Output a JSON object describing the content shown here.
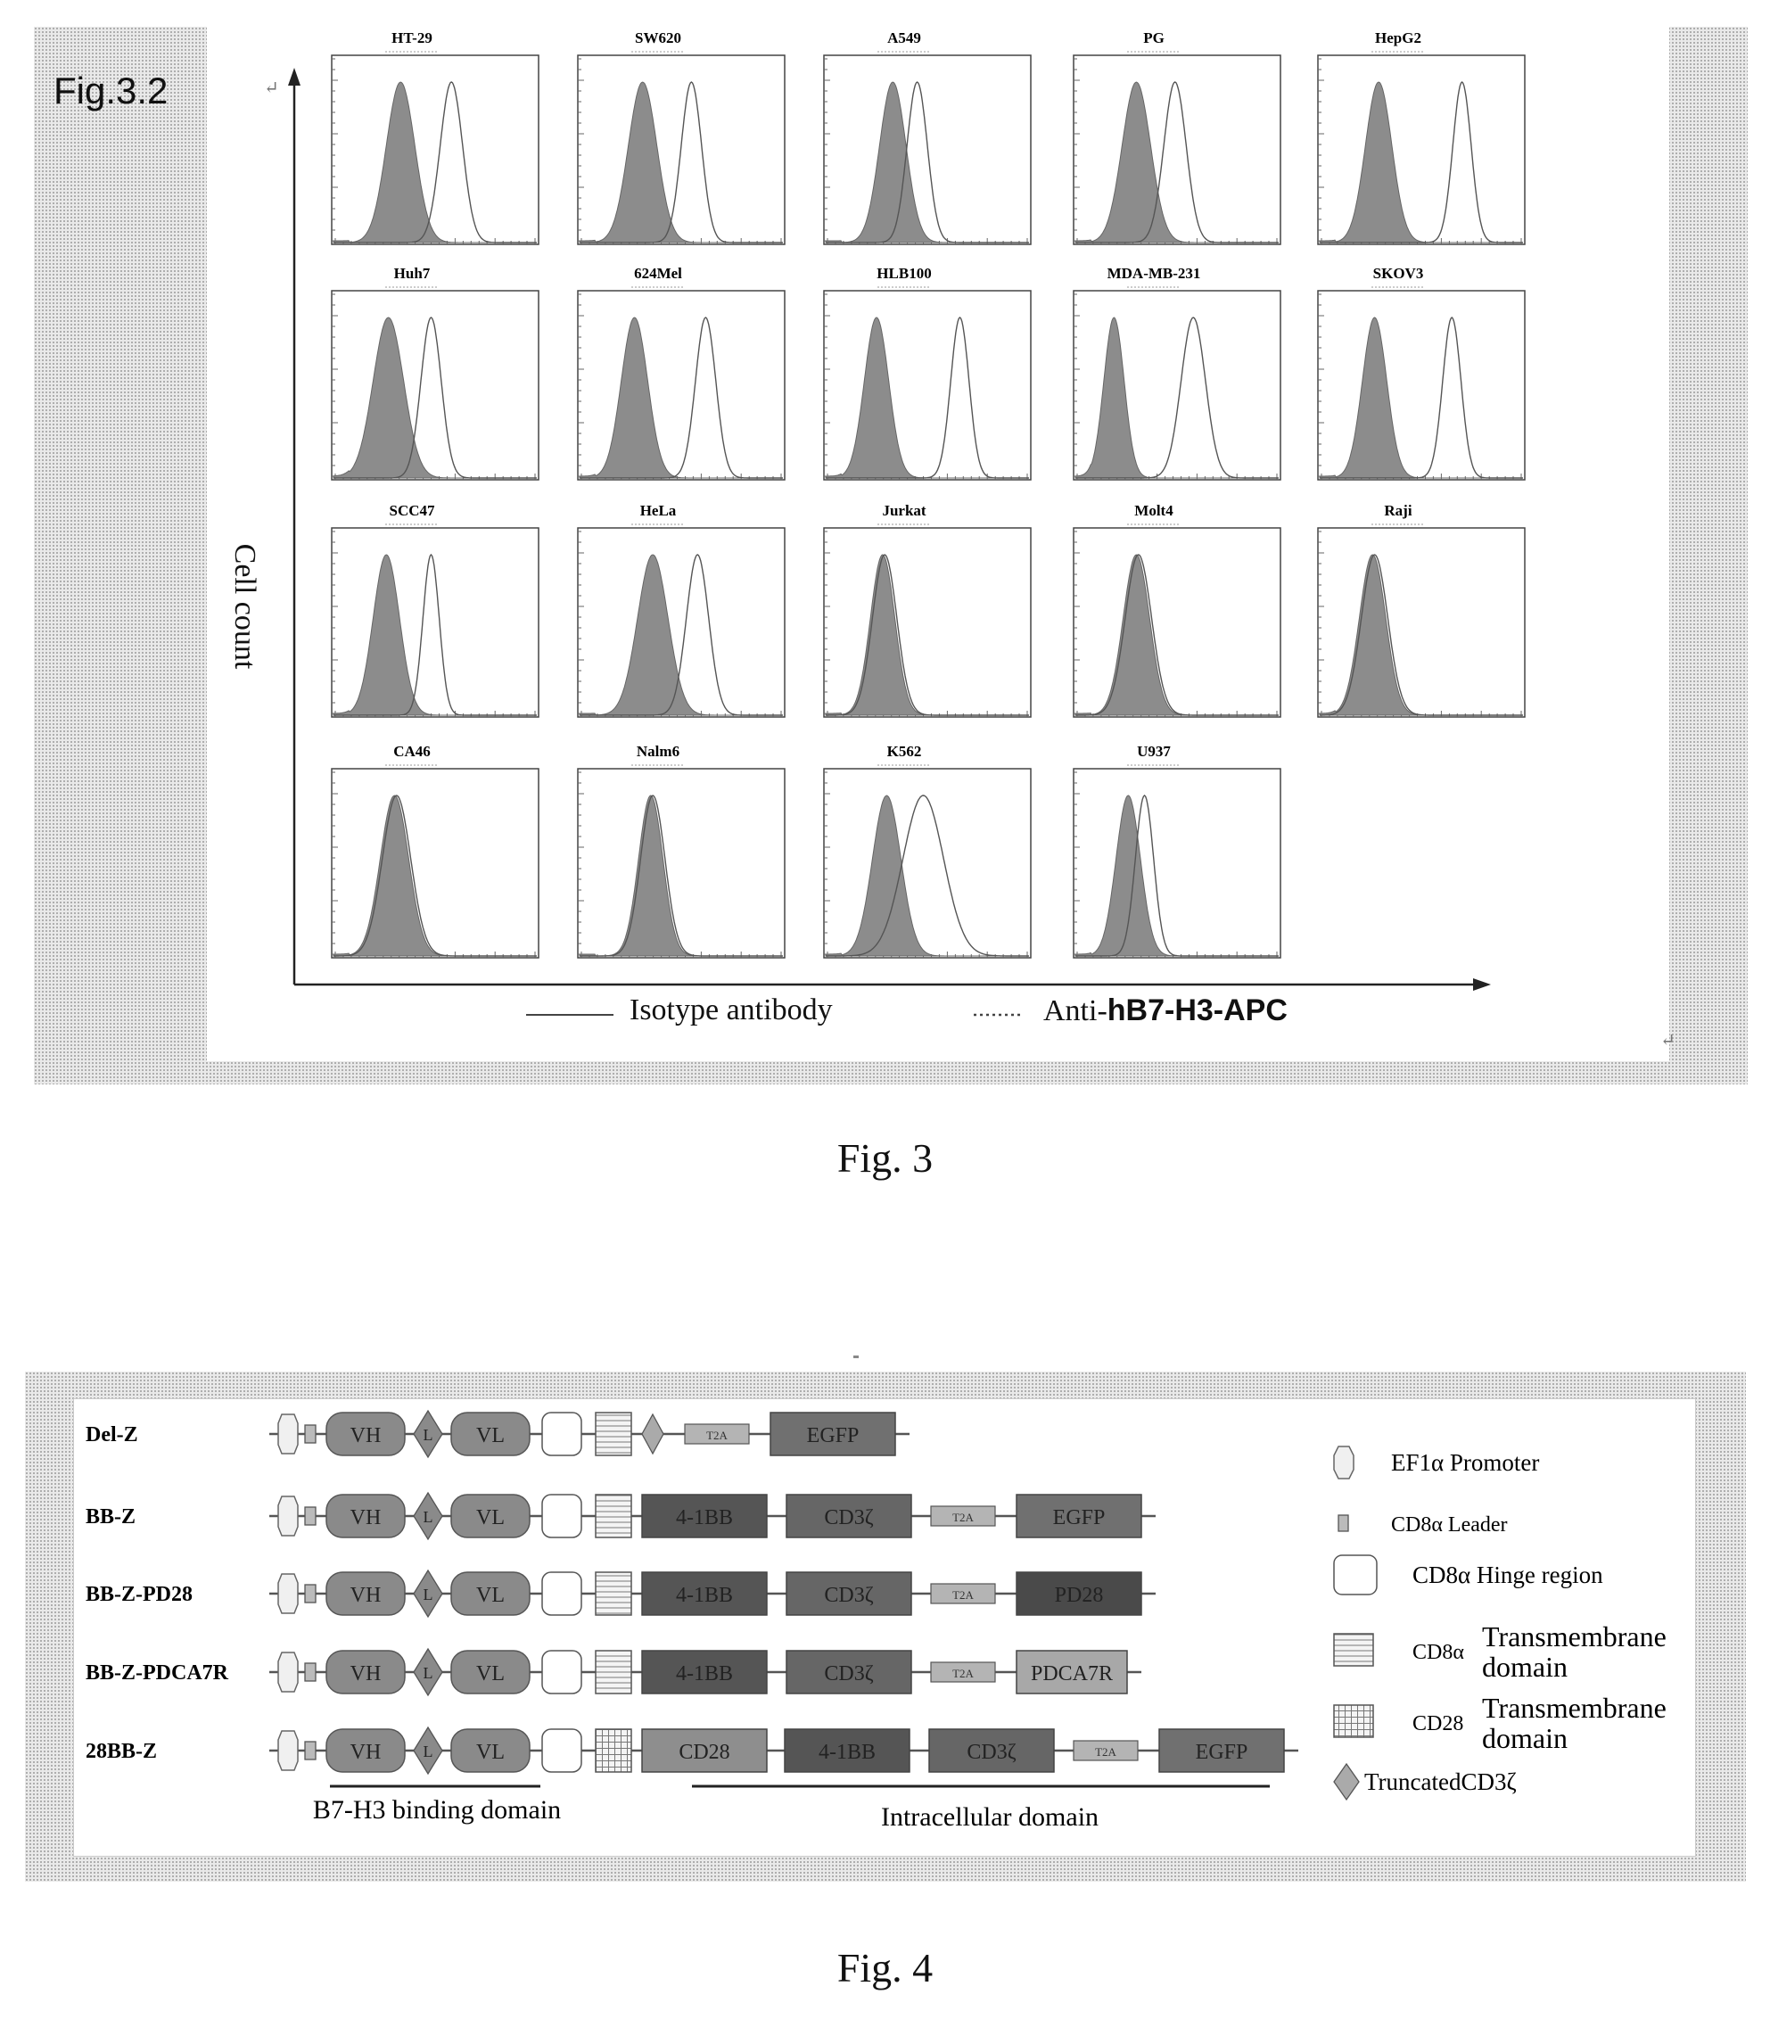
{
  "fig3": {
    "panel_label": "Fig.3.2",
    "y_axis_label": "Cell count",
    "legend": {
      "isotype": "Isotype antibody",
      "anti": "Anti-",
      "anti_bold": "hB7-H3-APC"
    },
    "caption": "Fig. 3",
    "cells": [
      {
        "name": "HT-29",
        "row": 0,
        "col": 0,
        "iso_mu": 0.33,
        "iso_sd": 0.07,
        "anti_mu": 0.58,
        "anti_sd": 0.055
      },
      {
        "name": "SW620",
        "row": 0,
        "col": 1,
        "iso_mu": 0.31,
        "iso_sd": 0.07,
        "anti_mu": 0.55,
        "anti_sd": 0.05
      },
      {
        "name": "A549",
        "row": 0,
        "col": 2,
        "iso_mu": 0.33,
        "iso_sd": 0.065,
        "anti_mu": 0.45,
        "anti_sd": 0.05
      },
      {
        "name": "PG",
        "row": 0,
        "col": 3,
        "iso_mu": 0.3,
        "iso_sd": 0.07,
        "anti_mu": 0.49,
        "anti_sd": 0.055
      },
      {
        "name": "HepG2",
        "row": 0,
        "col": 4,
        "iso_mu": 0.29,
        "iso_sd": 0.065,
        "anti_mu": 0.7,
        "anti_sd": 0.045
      },
      {
        "name": "Huh7",
        "row": 1,
        "col": 0,
        "iso_mu": 0.27,
        "iso_sd": 0.075,
        "anti_mu": 0.48,
        "anti_sd": 0.05
      },
      {
        "name": "624Mel",
        "row": 1,
        "col": 1,
        "iso_mu": 0.27,
        "iso_sd": 0.065,
        "anti_mu": 0.62,
        "anti_sd": 0.05
      },
      {
        "name": "HLB100",
        "row": 1,
        "col": 2,
        "iso_mu": 0.25,
        "iso_sd": 0.06,
        "anti_mu": 0.66,
        "anti_sd": 0.045
      },
      {
        "name": "MDA-MB-231",
        "row": 1,
        "col": 3,
        "iso_mu": 0.19,
        "iso_sd": 0.05,
        "anti_mu": 0.58,
        "anti_sd": 0.06
      },
      {
        "name": "SKOV3",
        "row": 1,
        "col": 4,
        "iso_mu": 0.27,
        "iso_sd": 0.06,
        "anti_mu": 0.65,
        "anti_sd": 0.045
      },
      {
        "name": "SCC47",
        "row": 2,
        "col": 0,
        "iso_mu": 0.26,
        "iso_sd": 0.065,
        "anti_mu": 0.48,
        "anti_sd": 0.04
      },
      {
        "name": "HeLa",
        "row": 2,
        "col": 1,
        "iso_mu": 0.36,
        "iso_sd": 0.075,
        "anti_mu": 0.58,
        "anti_sd": 0.055
      },
      {
        "name": "Jurkat",
        "row": 2,
        "col": 2,
        "iso_mu": 0.28,
        "iso_sd": 0.06,
        "anti_mu": 0.29,
        "anti_sd": 0.06
      },
      {
        "name": "Molt4",
        "row": 2,
        "col": 3,
        "iso_mu": 0.3,
        "iso_sd": 0.065,
        "anti_mu": 0.31,
        "anti_sd": 0.065
      },
      {
        "name": "Raji",
        "row": 2,
        "col": 4,
        "iso_mu": 0.26,
        "iso_sd": 0.065,
        "anti_mu": 0.27,
        "anti_sd": 0.065
      },
      {
        "name": "CA46",
        "row": 3,
        "col": 0,
        "iso_mu": 0.3,
        "iso_sd": 0.07,
        "anti_mu": 0.31,
        "anti_sd": 0.07
      },
      {
        "name": "Nalm6",
        "row": 3,
        "col": 1,
        "iso_mu": 0.35,
        "iso_sd": 0.06,
        "anti_mu": 0.36,
        "anti_sd": 0.06
      },
      {
        "name": "K562",
        "row": 3,
        "col": 2,
        "iso_mu": 0.3,
        "iso_sd": 0.07,
        "anti_mu": 0.48,
        "anti_sd": 0.1
      },
      {
        "name": "U937",
        "row": 3,
        "col": 3,
        "iso_mu": 0.26,
        "iso_sd": 0.06,
        "anti_mu": 0.34,
        "anti_sd": 0.045
      }
    ]
  },
  "fig4": {
    "caption": "Fig. 4",
    "constructs": [
      {
        "name": "Del-Z",
        "parts": [
          "promoter",
          "leader",
          "VH",
          "L",
          "VL",
          "hinge",
          "cd8tm",
          "trunc",
          "T2A",
          "EGFP"
        ]
      },
      {
        "name": "BB-Z",
        "parts": [
          "promoter",
          "leader",
          "VH",
          "L",
          "VL",
          "hinge",
          "cd8tm",
          "4-1BB",
          "CD3ζ",
          "T2A",
          "EGFP"
        ]
      },
      {
        "name": "BB-Z-PD28",
        "parts": [
          "promoter",
          "leader",
          "VH",
          "L",
          "VL",
          "hinge",
          "cd8tm",
          "4-1BB",
          "CD3ζ",
          "T2A",
          "PD28"
        ]
      },
      {
        "name": "BB-Z-PDCA7R",
        "parts": [
          "promoter",
          "leader",
          "VH",
          "L",
          "VL",
          "hinge",
          "cd8tm",
          "4-1BB",
          "CD3ζ",
          "T2A",
          "PDCA7R"
        ]
      },
      {
        "name": "28BB-Z",
        "parts": [
          "promoter",
          "leader",
          "VH",
          "L",
          "VL",
          "hinge",
          "cd28tm",
          "CD28",
          "4-1BB",
          "CD3ζ",
          "T2A",
          "EGFP"
        ]
      }
    ],
    "domain_labels": {
      "binding": "B7-H3 binding domain",
      "intracellular": "Intracellular domain"
    },
    "legend": [
      {
        "symbol": "promoter",
        "lines": [
          "EF1α  Promoter"
        ]
      },
      {
        "symbol": "leader",
        "lines": [
          "CD8α  Leader"
        ]
      },
      {
        "symbol": "hinge",
        "lines": [
          "CD8α  Hinge region"
        ]
      },
      {
        "symbol": "cd8tm",
        "lines": [
          "CD8α",
          "Transmembrane",
          "domain"
        ]
      },
      {
        "symbol": "cd28tm",
        "lines": [
          "CD28",
          "Transmembrane",
          "domain"
        ]
      },
      {
        "symbol": "trunc",
        "lines": [
          "TruncatedCD3ζ"
        ]
      }
    ]
  }
}
